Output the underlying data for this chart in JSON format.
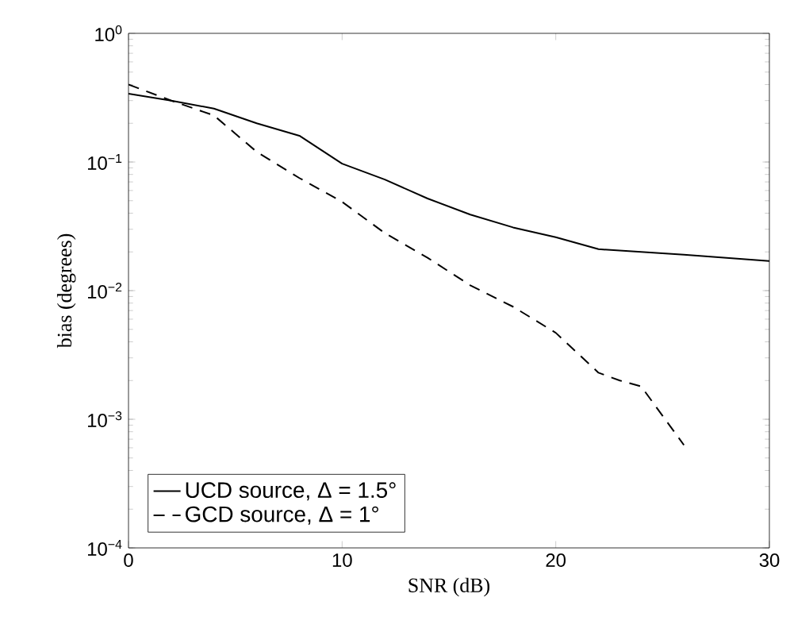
{
  "chart_data": {
    "type": "line",
    "xlabel": "SNR (dB)",
    "ylabel": "bias (degrees)",
    "log": "y",
    "grid": false,
    "legend": "bottom left",
    "xlim": [
      0,
      30
    ],
    "xticks": [
      0,
      10,
      20,
      30
    ],
    "ylim": [
      0.0001,
      1
    ],
    "yticks": [
      {
        "value": 0.0001,
        "label": "10$^{−4}$"
      },
      {
        "value": 0.001,
        "label": "10$^{−3}$"
      },
      {
        "value": 0.01,
        "label": "10$^{−2}$"
      },
      {
        "value": 0.1,
        "label": "10$^{−1}$"
      },
      {
        "value": 1,
        "label": "10$^{0}$"
      }
    ],
    "series": [
      {
        "name": "UCD source,  Δ = 1.5°",
        "color": "#000000",
        "line_style": "solid",
        "x": [
          0,
          2,
          4,
          6,
          8,
          10,
          12,
          14,
          16,
          18,
          20,
          22,
          26,
          30
        ],
        "values": [
          0.34,
          0.3,
          0.26,
          0.2,
          0.16,
          0.097,
          0.073,
          0.052,
          0.039,
          0.031,
          0.026,
          0.021,
          0.019,
          0.017
        ]
      },
      {
        "name": "GCD source,  Δ = 1°",
        "color": "#000000",
        "line_style": "dashed",
        "x": [
          0,
          2,
          4,
          6,
          8,
          10,
          12,
          14,
          16,
          18,
          20,
          22,
          23,
          24,
          26
        ],
        "values": [
          0.4,
          0.3,
          0.23,
          0.12,
          0.075,
          0.049,
          0.028,
          0.018,
          0.011,
          0.0075,
          0.0047,
          0.0023,
          0.002,
          0.0018,
          0.00063
        ]
      }
    ]
  }
}
